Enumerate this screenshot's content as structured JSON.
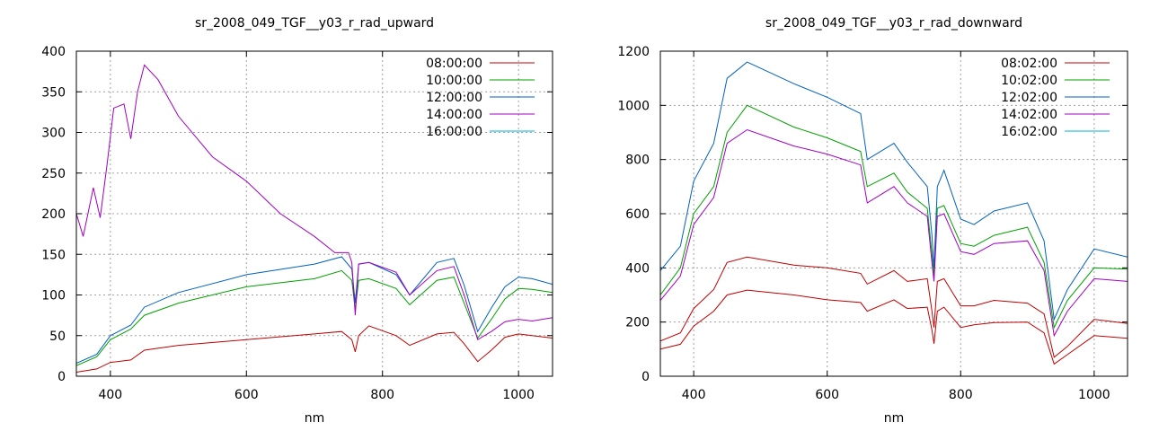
{
  "chart_data": [
    {
      "type": "line",
      "title": "sr_2008_049_TGF__y03_r_rad_upward",
      "xlabel": "nm",
      "ylabel": "",
      "xlim": [
        350,
        1050
      ],
      "ylim": [
        0,
        400
      ],
      "xticks": [
        "400",
        "600",
        "800",
        "1000"
      ],
      "yticks": [
        "0",
        "50",
        "100",
        "150",
        "200",
        "250",
        "300",
        "350",
        "400"
      ],
      "grid": true,
      "legend_position": "top-right",
      "series": [
        {
          "name": "08:00:00",
          "color": "#c00000",
          "x": [
            350,
            380,
            400,
            430,
            450,
            500,
            600,
            700,
            740,
            755,
            760,
            765,
            780,
            820,
            840,
            880,
            905,
            920,
            940,
            960,
            980,
            1000,
            1020,
            1050
          ],
          "y": [
            5,
            9,
            17,
            20,
            32,
            38,
            45,
            52,
            55,
            45,
            30,
            50,
            62,
            50,
            38,
            52,
            54,
            40,
            18,
            32,
            48,
            52,
            50,
            47
          ]
        },
        {
          "name": "10:00:00",
          "color": "#00a000",
          "x": [
            350,
            380,
            400,
            430,
            450,
            500,
            600,
            700,
            740,
            755,
            760,
            765,
            780,
            820,
            840,
            880,
            905,
            920,
            940,
            960,
            980,
            1000,
            1020,
            1050
          ],
          "y": [
            13,
            24,
            45,
            58,
            75,
            90,
            110,
            120,
            130,
            118,
            82,
            118,
            120,
            108,
            88,
            118,
            122,
            90,
            47,
            70,
            95,
            108,
            107,
            103
          ]
        },
        {
          "name": "12:00:00",
          "color": "#0060c0",
          "x": [
            350,
            380,
            400,
            430,
            450,
            500,
            600,
            700,
            740,
            755,
            760,
            765,
            780,
            820,
            840,
            880,
            905,
            920,
            940,
            960,
            980,
            1000,
            1020,
            1050
          ],
          "y": [
            16,
            27,
            50,
            63,
            85,
            103,
            125,
            138,
            147,
            132,
            90,
            138,
            140,
            125,
            100,
            140,
            145,
            112,
            55,
            84,
            110,
            122,
            120,
            113
          ]
        },
        {
          "name": "14:00:00",
          "color": "#a000c0",
          "x": [
            350,
            360,
            375,
            385,
            395,
            405,
            420,
            430,
            440,
            450,
            470,
            500,
            550,
            600,
            650,
            700,
            730,
            750,
            755,
            760,
            765,
            780,
            820,
            840,
            880,
            905,
            920,
            940,
            960,
            980,
            1000,
            1020,
            1050
          ],
          "y": [
            200,
            172,
            232,
            195,
            260,
            330,
            335,
            292,
            350,
            383,
            365,
            320,
            270,
            240,
            200,
            172,
            152,
            152,
            140,
            75,
            138,
            140,
            128,
            100,
            130,
            135,
            100,
            45,
            55,
            67,
            70,
            68,
            72
          ]
        },
        {
          "name": "16:00:00",
          "color": "#00b0e0",
          "x": [],
          "y": []
        }
      ]
    },
    {
      "type": "line",
      "title": "sr_2008_049_TGF__y03_r_rad_downward",
      "xlabel": "nm",
      "ylabel": "",
      "xlim": [
        350,
        1050
      ],
      "ylim": [
        0,
        1200
      ],
      "xticks": [
        "400",
        "600",
        "800",
        "1000"
      ],
      "yticks": [
        "0",
        "200",
        "400",
        "600",
        "800",
        "1000",
        "1200"
      ],
      "grid": true,
      "legend_position": "top-right",
      "series": [
        {
          "name": "08:02:00",
          "color": "#c00000",
          "x": [
            350,
            380,
            400,
            430,
            450,
            480,
            550,
            600,
            650,
            660,
            700,
            720,
            750,
            757,
            760,
            765,
            775,
            800,
            820,
            850,
            900,
            925,
            940,
            960,
            1000,
            1050
          ],
          "y": [
            100,
            118,
            185,
            240,
            300,
            318,
            300,
            282,
            272,
            240,
            282,
            250,
            255,
            170,
            120,
            240,
            255,
            180,
            190,
            198,
            200,
            160,
            45,
            80,
            150,
            140
          ]
        },
        {
          "name": "10:02:00",
          "color": "#00a000",
          "x": [
            350,
            380,
            400,
            430,
            450,
            480,
            550,
            600,
            650,
            660,
            700,
            720,
            750,
            757,
            760,
            765,
            775,
            800,
            820,
            850,
            900,
            925,
            940,
            960,
            1000,
            1050
          ],
          "y": [
            300,
            400,
            600,
            700,
            900,
            1000,
            920,
            880,
            830,
            700,
            750,
            680,
            620,
            450,
            370,
            620,
            630,
            490,
            480,
            520,
            550,
            420,
            180,
            280,
            400,
            395
          ]
        },
        {
          "name": "12:02:00",
          "color": "#0060c0",
          "x": [
            350,
            380,
            400,
            430,
            450,
            480,
            550,
            600,
            650,
            660,
            700,
            720,
            750,
            757,
            760,
            765,
            775,
            800,
            820,
            850,
            900,
            925,
            940,
            960,
            1000,
            1050
          ],
          "y": [
            390,
            480,
            720,
            860,
            1100,
            1160,
            1080,
            1030,
            970,
            800,
            860,
            790,
            700,
            520,
            400,
            700,
            760,
            580,
            560,
            610,
            640,
            500,
            210,
            320,
            470,
            440
          ]
        },
        {
          "name": "14:02:00",
          "color": "#a000c0",
          "x": [
            350,
            380,
            400,
            430,
            450,
            480,
            550,
            600,
            650,
            660,
            700,
            720,
            750,
            757,
            760,
            765,
            775,
            800,
            820,
            850,
            900,
            925,
            940,
            960,
            1000,
            1050
          ],
          "y": [
            280,
            370,
            560,
            660,
            860,
            910,
            850,
            820,
            780,
            640,
            700,
            640,
            590,
            420,
            350,
            590,
            600,
            460,
            450,
            490,
            500,
            390,
            150,
            240,
            360,
            350
          ]
        },
        {
          "name": "16:02:00",
          "color": "#00b0e0",
          "x": [],
          "y": []
        },
        {
          "name": "",
          "color": "#c00000",
          "x": [
            350,
            380,
            400,
            430,
            450,
            480,
            550,
            600,
            650,
            660,
            700,
            720,
            750,
            757,
            760,
            765,
            775,
            800,
            820,
            850,
            900,
            925,
            940,
            960,
            1000,
            1050
          ],
          "y": [
            130,
            160,
            250,
            320,
            420,
            440,
            410,
            400,
            380,
            340,
            390,
            350,
            360,
            240,
            180,
            350,
            360,
            260,
            260,
            280,
            270,
            230,
            70,
            110,
            210,
            195
          ]
        }
      ]
    }
  ]
}
